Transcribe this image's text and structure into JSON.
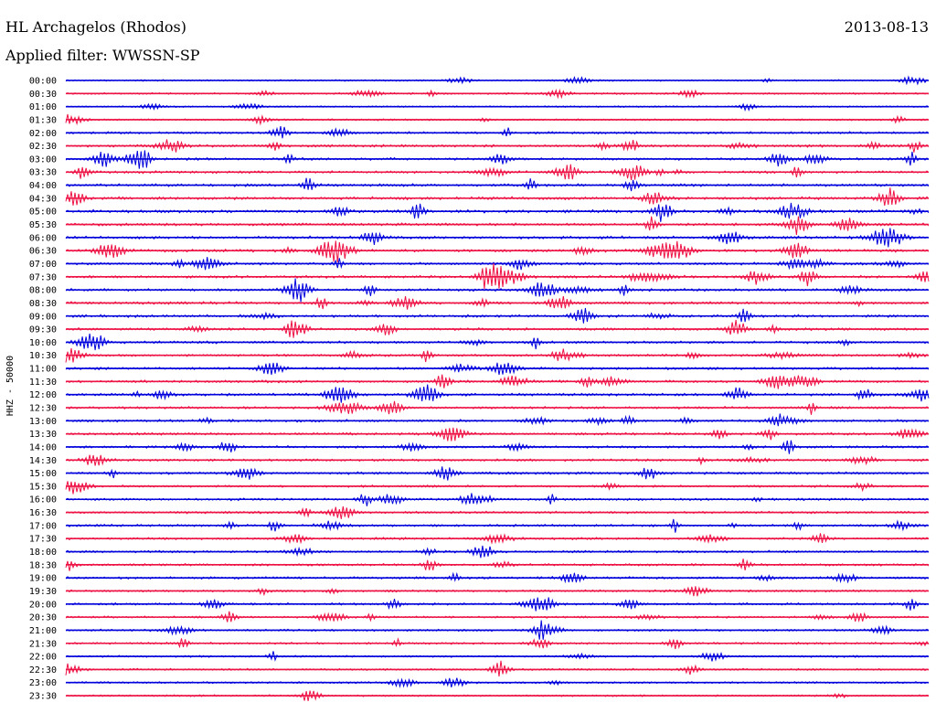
{
  "header": {
    "station": "HL Archagelos (Rhodos)",
    "date": "2013-08-13",
    "filter": "Applied filter: WWSSN-SP"
  },
  "chart_data": {
    "type": "line",
    "title": "HL Archagelos (Rhodos)",
    "ylabel": "HHZ - 50000",
    "xlabel": "",
    "colors": [
      "#0000dd",
      "#ee1144"
    ],
    "row_labels": [
      "00:00",
      "00:30",
      "01:00",
      "01:30",
      "02:00",
      "02:30",
      "03:00",
      "03:30",
      "04:00",
      "04:30",
      "05:00",
      "05:30",
      "06:00",
      "06:30",
      "07:00",
      "07:30",
      "08:00",
      "08:30",
      "09:00",
      "09:30",
      "10:00",
      "10:30",
      "11:00",
      "11:30",
      "12:00",
      "12:30",
      "13:00",
      "13:30",
      "14:00",
      "14:30",
      "15:00",
      "15:30",
      "16:00",
      "16:30",
      "17:00",
      "17:30",
      "18:00",
      "18:30",
      "19:00",
      "19:30",
      "20:00",
      "20:30",
      "21:00",
      "21:30",
      "22:00",
      "22:30",
      "23:00",
      "23:30"
    ],
    "row_activity": [
      0.4,
      0.5,
      0.3,
      0.5,
      0.8,
      1.0,
      1.0,
      1.1,
      1.1,
      1.3,
      1.4,
      1.2,
      1.2,
      1.2,
      1.1,
      1.1,
      1.1,
      1.1,
      1.1,
      1.0,
      1.0,
      0.9,
      1.0,
      1.0,
      1.1,
      1.0,
      1.0,
      1.0,
      1.0,
      0.9,
      1.0,
      0.8,
      0.9,
      0.9,
      0.9,
      0.8,
      0.9,
      0.8,
      0.9,
      0.8,
      0.8,
      0.7,
      0.7,
      0.7,
      0.6,
      0.6,
      0.5,
      0.5
    ],
    "grid": false,
    "legend": "none"
  }
}
